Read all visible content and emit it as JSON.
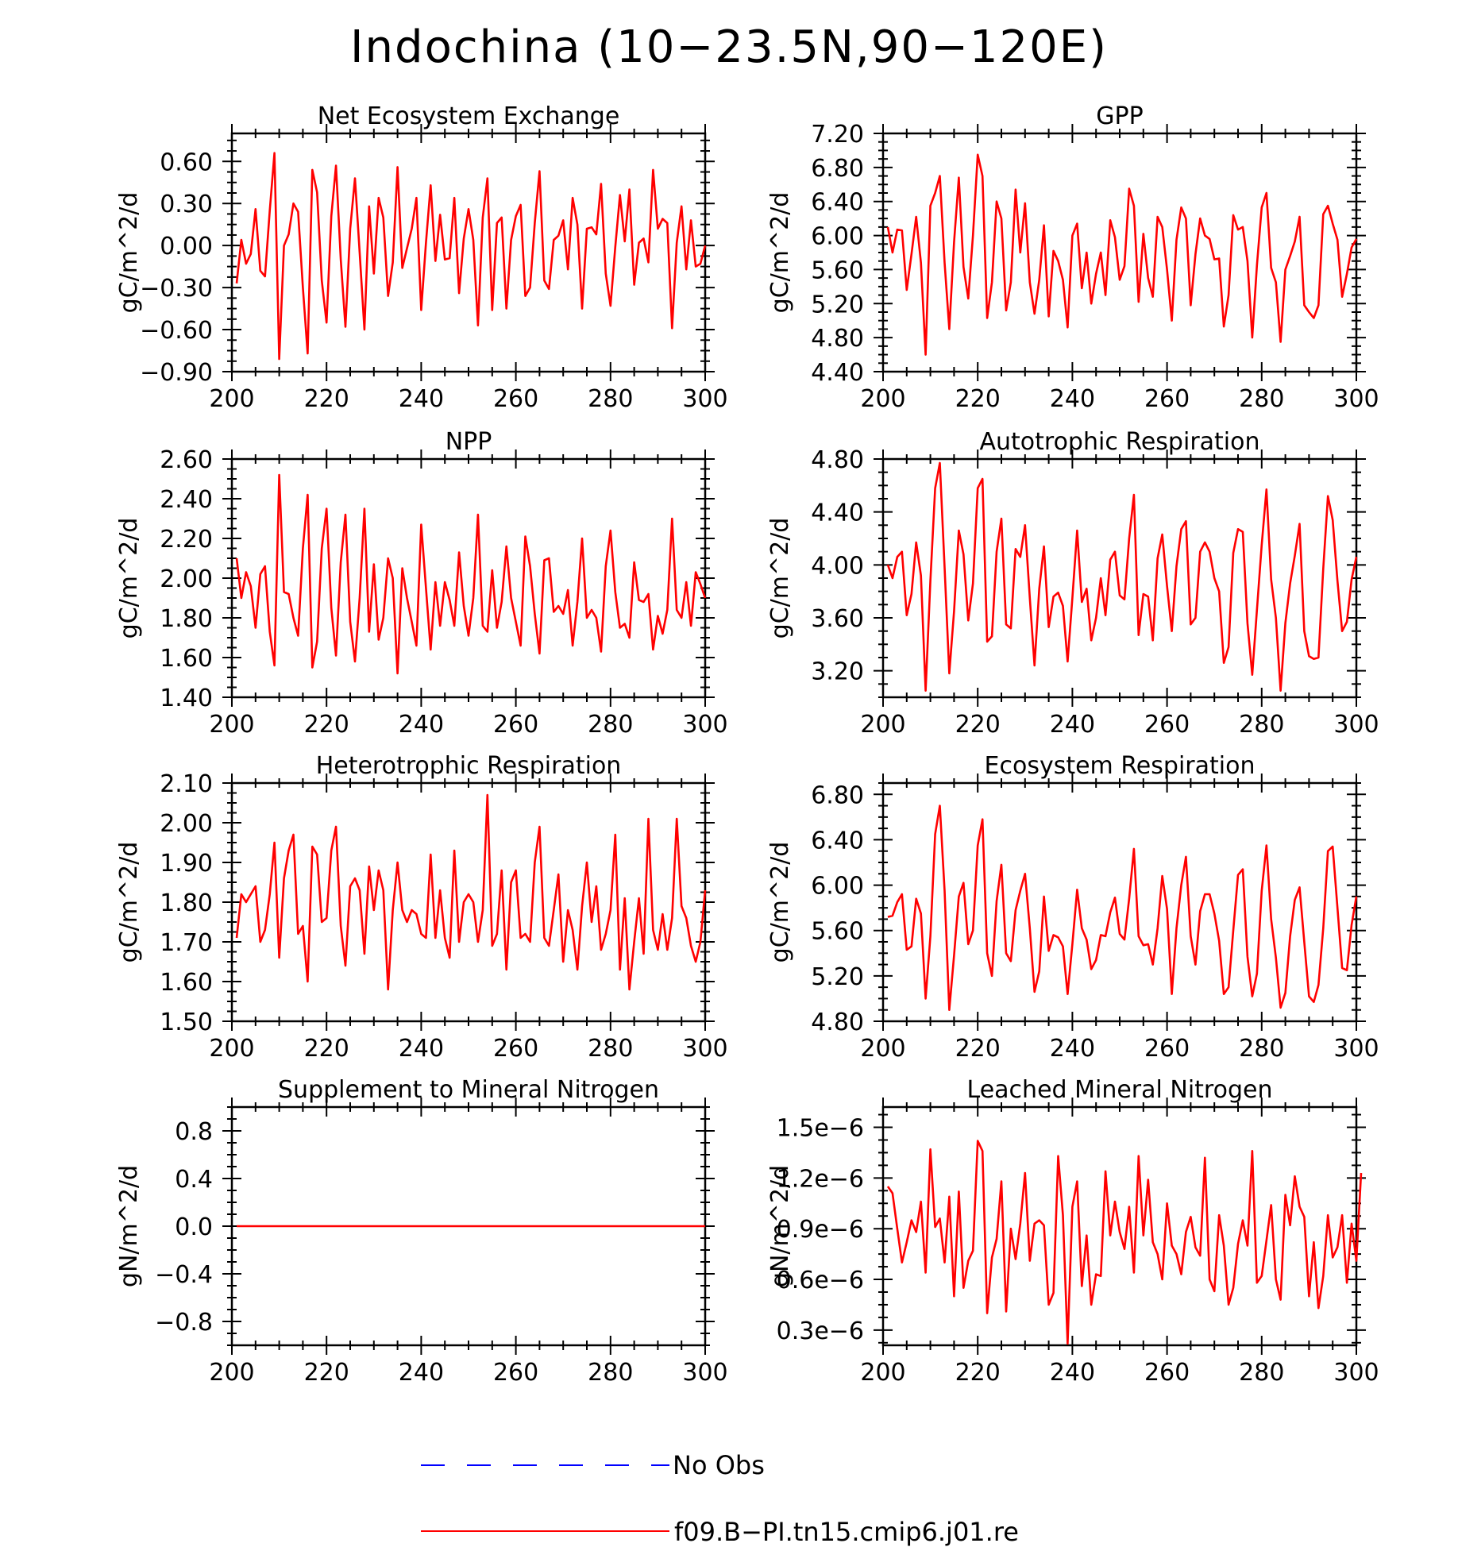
{
  "figure_title": "Indochina (10−23.5N,90−120E)",
  "colors": {
    "model_line": "#ff0000",
    "obs_line": "#0000ff",
    "axes": "#000000",
    "background": "#ffffff"
  },
  "legend": [
    {
      "label": "No Obs",
      "style": "dashed",
      "color": "#0000ff"
    },
    {
      "label": "f09.B−PI.tn15.cmip6.j01.re",
      "style": "solid",
      "color": "#ff0000"
    }
  ],
  "chart_data": [
    {
      "type": "line",
      "title": "Net Ecosystem Exchange",
      "ylabel": "gC/m^2/d",
      "xlim": [
        200,
        300
      ],
      "ylim": [
        -0.9,
        0.8
      ],
      "xticks": [
        200,
        220,
        240,
        260,
        280,
        300
      ],
      "xtick_labels": [
        "200",
        "220",
        "240",
        "260",
        "280",
        "300"
      ],
      "yticks": [
        -0.9,
        -0.6,
        -0.3,
        0.0,
        0.3,
        0.6
      ],
      "ytick_labels": [
        "−0.90",
        "−0.60",
        "−0.30",
        "0.00",
        "0.30",
        "0.60"
      ],
      "series": [
        {
          "name": "f09.B−PI.tn15.cmip6.j01.re",
          "x_start": 201,
          "x_step": 1,
          "values": [
            -0.27,
            0.04,
            -0.13,
            -0.06,
            0.26,
            -0.18,
            -0.22,
            0.25,
            0.66,
            -0.81,
            0.0,
            0.08,
            0.3,
            0.24,
            -0.3,
            -0.77,
            0.54,
            0.38,
            -0.25,
            -0.55,
            0.21,
            0.57,
            -0.1,
            -0.58,
            0.12,
            0.48,
            -0.05,
            -0.6,
            0.28,
            -0.2,
            0.34,
            0.2,
            -0.36,
            -0.12,
            0.56,
            -0.16,
            -0.02,
            0.12,
            0.34,
            -0.46,
            0.02,
            0.43,
            -0.11,
            0.22,
            -0.1,
            -0.09,
            0.34,
            -0.34,
            0.05,
            0.26,
            0.04,
            -0.57,
            0.2,
            0.48,
            -0.46,
            0.16,
            0.2,
            -0.45,
            0.04,
            0.21,
            0.29,
            -0.36,
            -0.3,
            0.16,
            0.53,
            -0.25,
            -0.31,
            0.04,
            0.07,
            0.18,
            -0.17,
            0.34,
            0.15,
            -0.45,
            0.12,
            0.13,
            0.08,
            0.44,
            -0.2,
            -0.43,
            -0.01,
            0.36,
            0.03,
            0.4,
            -0.28,
            0.02,
            0.05,
            -0.12,
            0.54,
            0.12,
            0.19,
            0.16,
            -0.59,
            0.02,
            0.28,
            -0.17,
            0.18,
            -0.15,
            -0.13,
            0.0
          ]
        }
      ]
    },
    {
      "type": "line",
      "title": "GPP",
      "ylabel": "gC/m^2/d",
      "xlim": [
        200,
        300
      ],
      "ylim": [
        4.4,
        7.2
      ],
      "xticks": [
        200,
        220,
        240,
        260,
        280,
        300
      ],
      "xtick_labels": [
        "200",
        "220",
        "240",
        "260",
        "280",
        "300"
      ],
      "yticks": [
        4.4,
        4.8,
        5.2,
        5.6,
        6.0,
        6.4,
        6.8,
        7.2
      ],
      "ytick_labels": [
        "4.40",
        "4.80",
        "5.20",
        "5.60",
        "6.00",
        "6.40",
        "6.80",
        "7.20"
      ],
      "series": [
        {
          "name": "f09.B−PI.tn15.cmip6.j01.re",
          "x_start": 201,
          "x_step": 1,
          "values": [
            6.1,
            5.8,
            6.07,
            6.06,
            5.36,
            5.78,
            6.22,
            5.68,
            4.6,
            6.35,
            6.5,
            6.7,
            5.68,
            4.9,
            5.92,
            6.68,
            5.63,
            5.26,
            6.0,
            6.95,
            6.7,
            5.03,
            5.45,
            6.4,
            6.2,
            5.12,
            5.45,
            6.54,
            5.8,
            6.38,
            5.45,
            5.08,
            5.48,
            6.12,
            5.05,
            5.82,
            5.7,
            5.48,
            4.92,
            6.0,
            6.14,
            5.38,
            5.8,
            5.2,
            5.55,
            5.8,
            5.3,
            6.18,
            5.98,
            5.48,
            5.64,
            6.55,
            6.35,
            5.22,
            6.02,
            5.5,
            5.28,
            6.22,
            6.1,
            5.6,
            5.0,
            5.95,
            6.33,
            6.2,
            5.18,
            5.78,
            6.2,
            6.0,
            5.96,
            5.72,
            5.73,
            4.93,
            5.3,
            6.24,
            6.07,
            6.1,
            5.7,
            4.8,
            5.65,
            6.33,
            6.5,
            5.62,
            5.45,
            4.75,
            5.6,
            5.76,
            5.93,
            6.22,
            5.18,
            5.1,
            5.03,
            5.18,
            6.25,
            6.35,
            6.14,
            5.95,
            5.28,
            5.55,
            5.86,
            5.96
          ]
        }
      ]
    },
    {
      "type": "line",
      "title": "NPP",
      "ylabel": "gC/m^2/d",
      "xlim": [
        200,
        300
      ],
      "ylim": [
        1.4,
        2.6
      ],
      "xticks": [
        200,
        220,
        240,
        260,
        280,
        300
      ],
      "xtick_labels": [
        "200",
        "220",
        "240",
        "260",
        "280",
        "300"
      ],
      "yticks": [
        1.4,
        1.6,
        1.8,
        2.0,
        2.2,
        2.4,
        2.6
      ],
      "ytick_labels": [
        "1.40",
        "1.60",
        "1.80",
        "2.00",
        "2.20",
        "2.40",
        "2.60"
      ],
      "series": [
        {
          "name": "f09.B−PI.tn15.cmip6.j01.re",
          "x_start": 201,
          "x_step": 1,
          "values": [
            2.1,
            1.9,
            2.03,
            1.96,
            1.75,
            2.02,
            2.06,
            1.73,
            1.56,
            2.52,
            1.93,
            1.92,
            1.8,
            1.71,
            2.15,
            2.42,
            1.55,
            1.68,
            2.15,
            2.35,
            1.85,
            1.61,
            2.08,
            2.32,
            1.78,
            1.58,
            1.9,
            2.35,
            1.73,
            2.07,
            1.69,
            1.8,
            2.1,
            2.0,
            1.52,
            2.05,
            1.9,
            1.78,
            1.66,
            2.27,
            1.95,
            1.64,
            1.98,
            1.76,
            1.98,
            1.89,
            1.76,
            2.13,
            1.86,
            1.71,
            1.9,
            2.32,
            1.76,
            1.73,
            2.04,
            1.75,
            1.88,
            2.16,
            1.9,
            1.78,
            1.66,
            2.21,
            2.06,
            1.82,
            1.62,
            2.09,
            2.1,
            1.83,
            1.86,
            1.82,
            1.94,
            1.66,
            1.88,
            2.2,
            1.8,
            1.84,
            1.8,
            1.63,
            2.06,
            2.24,
            1.93,
            1.75,
            1.77,
            1.7,
            2.08,
            1.89,
            1.88,
            1.92,
            1.64,
            1.81,
            1.72,
            1.84,
            2.3,
            1.84,
            1.8,
            1.98,
            1.76,
            2.03,
            1.97,
            1.9
          ]
        }
      ]
    },
    {
      "type": "line",
      "title": "Autotrophic Respiration",
      "ylabel": "gC/m^2/d",
      "xlim": [
        200,
        300
      ],
      "ylim": [
        3.0,
        4.8
      ],
      "xticks": [
        200,
        220,
        240,
        260,
        280,
        300
      ],
      "xtick_labels": [
        "200",
        "220",
        "240",
        "260",
        "280",
        "300"
      ],
      "yticks": [
        3.2,
        3.6,
        4.0,
        4.4,
        4.8
      ],
      "ytick_labels": [
        "3.20",
        "3.60",
        "4.00",
        "4.40",
        "4.80"
      ],
      "series": [
        {
          "name": "f09.B−PI.tn15.cmip6.j01.re",
          "x_start": 201,
          "x_step": 1,
          "values": [
            4.0,
            3.9,
            4.06,
            4.1,
            3.62,
            3.78,
            4.17,
            3.92,
            3.05,
            3.88,
            4.58,
            4.77,
            3.98,
            3.18,
            3.65,
            4.26,
            4.08,
            3.58,
            3.86,
            4.58,
            4.65,
            3.42,
            3.46,
            4.1,
            4.35,
            3.55,
            3.52,
            4.12,
            4.06,
            4.3,
            3.75,
            3.24,
            3.82,
            4.14,
            3.53,
            3.76,
            3.79,
            3.69,
            3.27,
            3.75,
            4.26,
            3.72,
            3.82,
            3.43,
            3.6,
            3.9,
            3.62,
            4.04,
            4.1,
            3.77,
            3.74,
            4.2,
            4.53,
            3.47,
            3.78,
            3.76,
            3.43,
            4.05,
            4.23,
            3.84,
            3.5,
            3.99,
            4.27,
            4.33,
            3.55,
            3.6,
            4.1,
            4.17,
            4.1,
            3.9,
            3.8,
            3.26,
            3.38,
            4.09,
            4.27,
            4.25,
            3.56,
            3.17,
            3.66,
            4.15,
            4.57,
            3.89,
            3.6,
            3.05,
            3.56,
            3.86,
            4.07,
            4.31,
            3.5,
            3.31,
            3.29,
            3.3,
            3.97,
            4.52,
            4.34,
            3.88,
            3.5,
            3.57,
            3.89,
            4.06
          ]
        }
      ]
    },
    {
      "type": "line",
      "title": "Heterotrophic Respiration",
      "ylabel": "gC/m^2/d",
      "xlim": [
        200,
        300
      ],
      "ylim": [
        1.5,
        2.1
      ],
      "xticks": [
        200,
        220,
        240,
        260,
        280,
        300
      ],
      "xtick_labels": [
        "200",
        "220",
        "240",
        "260",
        "280",
        "300"
      ],
      "yticks": [
        1.5,
        1.6,
        1.7,
        1.8,
        1.9,
        2.0,
        2.1
      ],
      "ytick_labels": [
        "1.50",
        "1.60",
        "1.70",
        "1.80",
        "1.90",
        "2.00",
        "2.10"
      ],
      "series": [
        {
          "name": "f09.B−PI.tn15.cmip6.j01.re",
          "x_start": 201,
          "x_step": 1,
          "values": [
            1.71,
            1.82,
            1.8,
            1.82,
            1.84,
            1.7,
            1.73,
            1.82,
            1.95,
            1.66,
            1.86,
            1.93,
            1.97,
            1.72,
            1.74,
            1.6,
            1.94,
            1.92,
            1.75,
            1.76,
            1.93,
            1.99,
            1.74,
            1.64,
            1.84,
            1.86,
            1.83,
            1.67,
            1.89,
            1.78,
            1.88,
            1.83,
            1.58,
            1.78,
            1.9,
            1.78,
            1.75,
            1.78,
            1.77,
            1.72,
            1.71,
            1.92,
            1.71,
            1.83,
            1.71,
            1.66,
            1.93,
            1.7,
            1.8,
            1.82,
            1.8,
            1.7,
            1.78,
            2.07,
            1.69,
            1.72,
            1.88,
            1.63,
            1.85,
            1.88,
            1.71,
            1.72,
            1.7,
            1.9,
            1.99,
            1.71,
            1.69,
            1.78,
            1.87,
            1.65,
            1.78,
            1.73,
            1.63,
            1.79,
            1.9,
            1.75,
            1.84,
            1.68,
            1.72,
            1.78,
            1.97,
            1.63,
            1.81,
            1.58,
            1.7,
            1.81,
            1.67,
            2.01,
            1.73,
            1.68,
            1.77,
            1.68,
            1.76,
            2.01,
            1.79,
            1.76,
            1.69,
            1.65,
            1.7,
            1.83
          ]
        }
      ]
    },
    {
      "type": "line",
      "title": "Ecosystem Respiration",
      "ylabel": "gC/m^2/d",
      "xlim": [
        200,
        300
      ],
      "ylim": [
        4.8,
        6.9
      ],
      "xticks": [
        200,
        220,
        240,
        260,
        280,
        300
      ],
      "xtick_labels": [
        "200",
        "220",
        "240",
        "260",
        "280",
        "300"
      ],
      "yticks": [
        4.8,
        5.2,
        5.6,
        6.0,
        6.4,
        6.8
      ],
      "ytick_labels": [
        "4.80",
        "5.20",
        "5.60",
        "6.00",
        "6.40",
        "6.80"
      ],
      "series": [
        {
          "name": "f09.B−PI.tn15.cmip6.j01.re",
          "x_start": 201,
          "x_step": 1,
          "values": [
            5.72,
            5.73,
            5.85,
            5.92,
            5.43,
            5.46,
            5.88,
            5.75,
            5.0,
            5.55,
            6.45,
            6.7,
            5.95,
            4.9,
            5.38,
            5.9,
            6.02,
            5.48,
            5.6,
            6.35,
            6.58,
            5.4,
            5.2,
            5.86,
            6.18,
            5.4,
            5.33,
            5.78,
            5.95,
            6.1,
            5.62,
            5.06,
            5.24,
            5.9,
            5.42,
            5.56,
            5.54,
            5.46,
            5.04,
            5.48,
            5.96,
            5.62,
            5.52,
            5.26,
            5.34,
            5.56,
            5.55,
            5.76,
            5.89,
            5.57,
            5.52,
            5.88,
            6.32,
            5.55,
            5.47,
            5.48,
            5.3,
            5.62,
            6.08,
            5.79,
            5.04,
            5.62,
            6.0,
            6.25,
            5.55,
            5.3,
            5.77,
            5.92,
            5.92,
            5.75,
            5.51,
            5.04,
            5.1,
            5.6,
            6.09,
            6.14,
            5.37,
            5.02,
            5.22,
            5.95,
            6.35,
            5.7,
            5.36,
            4.92,
            5.05,
            5.55,
            5.87,
            5.98,
            5.5,
            5.02,
            4.97,
            5.12,
            5.62,
            6.3,
            6.34,
            5.8,
            5.27,
            5.25,
            5.65,
            5.9
          ]
        }
      ]
    },
    {
      "type": "line",
      "title": "Supplement to Mineral Nitrogen",
      "ylabel": "gN/m^2/d",
      "xlim": [
        200,
        300
      ],
      "ylim": [
        -1.0,
        1.0
      ],
      "xticks": [
        200,
        220,
        240,
        260,
        280,
        300
      ],
      "xtick_labels": [
        "200",
        "220",
        "240",
        "260",
        "280",
        "300"
      ],
      "yticks": [
        -0.8,
        -0.4,
        0.0,
        0.4,
        0.8
      ],
      "ytick_labels": [
        "−0.8",
        "−0.4",
        "0.0",
        "0.4",
        "0.8"
      ],
      "series": [
        {
          "name": "f09.B−PI.tn15.cmip6.j01.re",
          "x_start": 201,
          "x_step": 99,
          "values": [
            0.0,
            0.0
          ]
        }
      ]
    },
    {
      "type": "line",
      "title": "Leached Mineral Nitrogen",
      "ylabel": "gN/m^2/d",
      "xlim": [
        200,
        300
      ],
      "ylim": [
        0.21,
        1.62
      ],
      "xticks": [
        200,
        220,
        240,
        260,
        280,
        300
      ],
      "xtick_labels": [
        "200",
        "220",
        "240",
        "260",
        "280",
        "300"
      ],
      "yticks": [
        0.3,
        0.6,
        0.9,
        1.2,
        1.5
      ],
      "ytick_labels": [
        "0.3e−6",
        "0.6e−6",
        "0.9e−6",
        "1.2e−6",
        "1.5e−6"
      ],
      "series": [
        {
          "name": "f09.B−PI.tn15.cmip6.j01.re",
          "x_start": 201,
          "x_step": 1,
          "value_scale": "1e-6",
          "values": [
            1.15,
            1.11,
            0.9,
            0.7,
            0.82,
            0.95,
            0.88,
            1.06,
            0.64,
            1.37,
            0.91,
            0.96,
            0.7,
            1.09,
            0.5,
            1.12,
            0.55,
            0.71,
            0.77,
            1.42,
            1.36,
            0.4,
            0.73,
            0.84,
            1.18,
            0.41,
            0.9,
            0.72,
            0.93,
            1.23,
            0.71,
            0.93,
            0.95,
            0.92,
            0.45,
            0.52,
            1.33,
            0.98,
            0.22,
            1.03,
            1.18,
            0.56,
            0.86,
            0.45,
            0.63,
            0.62,
            1.24,
            0.86,
            1.06,
            0.88,
            0.78,
            1.03,
            0.64,
            1.33,
            0.86,
            1.19,
            0.82,
            0.75,
            0.6,
            1.05,
            0.8,
            0.75,
            0.63,
            0.88,
            0.97,
            0.79,
            0.74,
            1.32,
            0.6,
            0.53,
            0.98,
            0.8,
            0.45,
            0.55,
            0.81,
            0.95,
            0.8,
            1.36,
            0.58,
            0.62,
            0.83,
            1.04,
            0.6,
            0.48,
            1.1,
            0.92,
            1.21,
            1.03,
            0.97,
            0.5,
            0.82,
            0.43,
            0.62,
            0.98,
            0.73,
            0.79,
            0.98,
            0.58,
            0.93,
            0.71,
            1.23
          ]
        }
      ]
    }
  ]
}
